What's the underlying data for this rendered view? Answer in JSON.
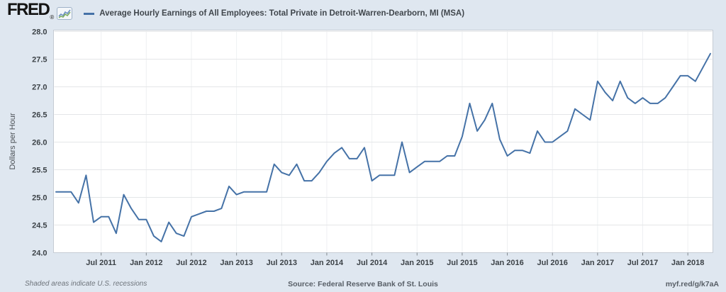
{
  "header": {
    "logo_text": "FRED",
    "logo_mark": "®",
    "legend_label": "Average Hourly Earnings of All Employees: Total Private in Detroit-Warren-Dearborn, MI (MSA)"
  },
  "footer": {
    "note": "Shaded areas indicate U.S. recessions",
    "source": "Source: Federal Reserve Bank of St. Louis",
    "link": "myf.red/g/k7aA"
  },
  "colors": {
    "canvas_bg": "#dfe7f0",
    "plot_bg": "#ffffff",
    "plot_border": "#c6ccd4",
    "h_grid": "#e4e6e8",
    "v_grid": "#eef0f2",
    "tick_mark": "#82898f",
    "tick_text": "#3c4247",
    "axis_title_text": "#4a4f54",
    "line": "#4572a7"
  },
  "chart_data": {
    "type": "line",
    "title": "Average Hourly Earnings of All Employees: Total Private in Detroit-Warren-Dearborn, MI (MSA)",
    "xlabel": "",
    "ylabel": "Dollars per Hour",
    "units": "Dollars per Hour",
    "frequency": "monthly",
    "date_start": "2011-01",
    "date_end": "2018-04",
    "ylim": [
      24.0,
      28.0
    ],
    "grid": true,
    "legend_position": "top-left",
    "y_ticks": [
      24.0,
      24.5,
      25.0,
      25.5,
      26.0,
      26.5,
      27.0,
      27.5,
      28.0
    ],
    "x_ticks": [
      {
        "label": "Jul 2011",
        "index": 6
      },
      {
        "label": "Jan 2012",
        "index": 12
      },
      {
        "label": "Jul 2012",
        "index": 18
      },
      {
        "label": "Jan 2013",
        "index": 24
      },
      {
        "label": "Jul 2013",
        "index": 30
      },
      {
        "label": "Jan 2014",
        "index": 36
      },
      {
        "label": "Jul 2014",
        "index": 42
      },
      {
        "label": "Jan 2015",
        "index": 48
      },
      {
        "label": "Jul 2015",
        "index": 54
      },
      {
        "label": "Jan 2016",
        "index": 60
      },
      {
        "label": "Jul 2016",
        "index": 66
      },
      {
        "label": "Jan 2017",
        "index": 72
      },
      {
        "label": "Jul 2017",
        "index": 78
      },
      {
        "label": "Jan 2018",
        "index": 84
      }
    ],
    "dates": [
      "2011-01",
      "2011-02",
      "2011-03",
      "2011-04",
      "2011-05",
      "2011-06",
      "2011-07",
      "2011-08",
      "2011-09",
      "2011-10",
      "2011-11",
      "2011-12",
      "2012-01",
      "2012-02",
      "2012-03",
      "2012-04",
      "2012-05",
      "2012-06",
      "2012-07",
      "2012-08",
      "2012-09",
      "2012-10",
      "2012-11",
      "2012-12",
      "2013-01",
      "2013-02",
      "2013-03",
      "2013-04",
      "2013-05",
      "2013-06",
      "2013-07",
      "2013-08",
      "2013-09",
      "2013-10",
      "2013-11",
      "2013-12",
      "2014-01",
      "2014-02",
      "2014-03",
      "2014-04",
      "2014-05",
      "2014-06",
      "2014-07",
      "2014-08",
      "2014-09",
      "2014-10",
      "2014-11",
      "2014-12",
      "2015-01",
      "2015-02",
      "2015-03",
      "2015-04",
      "2015-05",
      "2015-06",
      "2015-07",
      "2015-08",
      "2015-09",
      "2015-10",
      "2015-11",
      "2015-12",
      "2016-01",
      "2016-02",
      "2016-03",
      "2016-04",
      "2016-05",
      "2016-06",
      "2016-07",
      "2016-08",
      "2016-09",
      "2016-10",
      "2016-11",
      "2016-12",
      "2017-01",
      "2017-02",
      "2017-03",
      "2017-04",
      "2017-05",
      "2017-06",
      "2017-07",
      "2017-08",
      "2017-09",
      "2017-10",
      "2017-11",
      "2017-12",
      "2018-01",
      "2018-02",
      "2018-03",
      "2018-04"
    ],
    "values": [
      25.1,
      25.1,
      25.1,
      24.9,
      25.4,
      24.55,
      24.65,
      24.65,
      24.35,
      25.05,
      24.8,
      24.6,
      24.6,
      24.3,
      24.2,
      24.55,
      24.35,
      24.3,
      24.65,
      24.7,
      24.75,
      24.75,
      24.8,
      25.2,
      25.05,
      25.1,
      25.1,
      25.1,
      25.1,
      25.6,
      25.45,
      25.4,
      25.6,
      25.3,
      25.3,
      25.45,
      25.65,
      25.8,
      25.9,
      25.7,
      25.7,
      25.9,
      25.3,
      25.4,
      25.4,
      25.4,
      26.0,
      25.45,
      25.55,
      25.65,
      25.65,
      25.65,
      25.75,
      25.75,
      26.1,
      26.7,
      26.2,
      26.4,
      26.7,
      26.05,
      25.75,
      25.85,
      25.85,
      25.8,
      26.2,
      26.0,
      26.0,
      26.1,
      26.2,
      26.6,
      26.5,
      26.4,
      27.1,
      26.9,
      26.75,
      27.1,
      26.8,
      26.7,
      26.8,
      26.7,
      26.7,
      26.8,
      27.0,
      27.2,
      27.2,
      27.1,
      27.35,
      27.6
    ]
  }
}
